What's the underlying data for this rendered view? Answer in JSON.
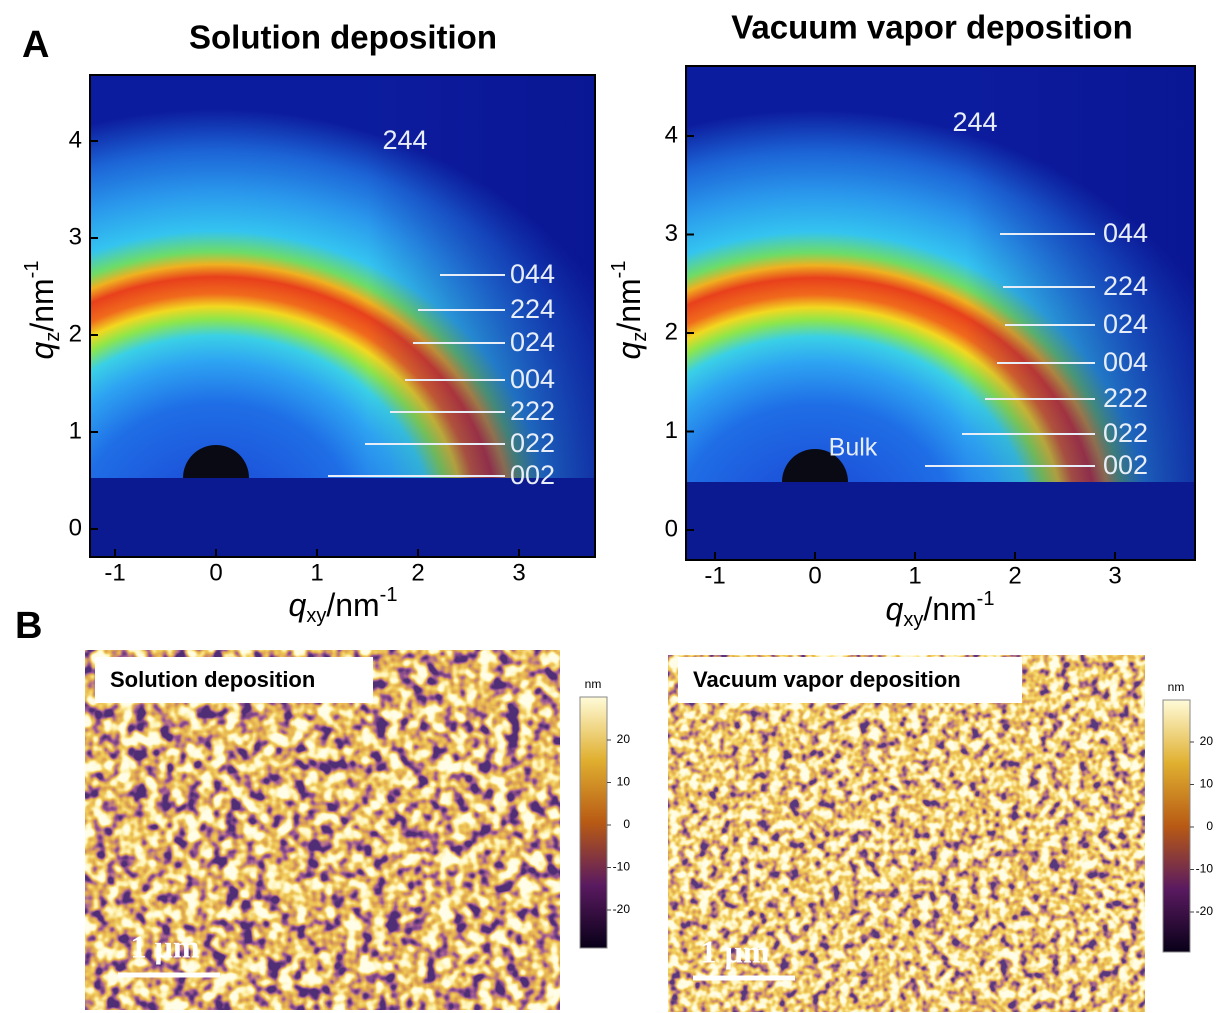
{
  "panel_a": {
    "label": "A",
    "plots": [
      {
        "title": "Solution deposition",
        "y_axis": {
          "symbol": "q",
          "subscript": "z",
          "unit": "/nm",
          "exponent": "-1",
          "ticks": [
            0,
            1,
            2,
            3,
            4
          ]
        },
        "x_axis": {
          "symbol": "q",
          "subscript": "xy",
          "unit": "/nm",
          "exponent": "-1",
          "ticks": [
            -1,
            0,
            1,
            2,
            3
          ]
        },
        "ring_label": "244",
        "peak_labels": [
          "044",
          "224",
          "024",
          "004",
          "222",
          "022",
          "002"
        ]
      },
      {
        "title": "Vacuum vapor deposition",
        "y_axis": {
          "symbol": "q",
          "subscript": "z",
          "unit": "/nm",
          "exponent": "-1",
          "ticks": [
            0,
            1,
            2,
            3,
            4
          ]
        },
        "x_axis": {
          "symbol": "q",
          "subscript": "xy",
          "unit": "/nm",
          "exponent": "-1",
          "ticks": [
            -1,
            0,
            1,
            2,
            3
          ]
        },
        "ring_label": "244",
        "peak_labels": [
          "044",
          "224",
          "024",
          "004",
          "222",
          "022",
          "002"
        ],
        "annotation": "Bulk"
      }
    ]
  },
  "panel_b": {
    "label": "B",
    "images": [
      {
        "label": "Solution deposition",
        "colorbar": {
          "unit": "nm",
          "ticks": [
            20,
            10,
            0,
            -10,
            -20
          ]
        },
        "scale_bar": "1 µm"
      },
      {
        "label": "Vacuum vapor deposition",
        "colorbar": {
          "unit": "nm",
          "ticks": [
            20,
            10,
            0,
            -10,
            -20
          ]
        },
        "scale_bar": "1 µm"
      }
    ]
  }
}
